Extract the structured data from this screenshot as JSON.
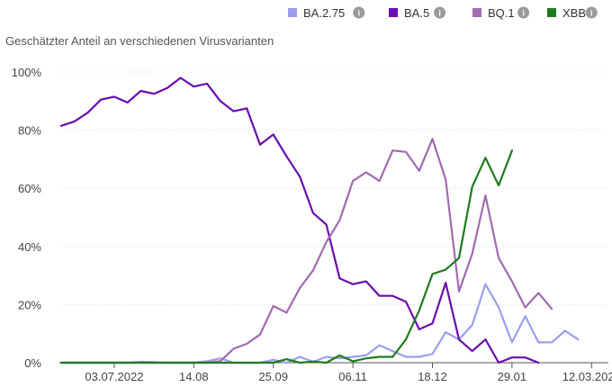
{
  "subtitle": "Geschätzter Anteil an verschiedenen Virusvarianten",
  "legend_info_glyph": "i",
  "chart_data": {
    "type": "line",
    "subtitle": "Geschätzter Anteil an verschiedenen Virusvarianten",
    "y_unit": "%",
    "ylim": [
      0,
      100
    ],
    "yticks": [
      "0%",
      "20%",
      "40%",
      "60%",
      "80%",
      "100%"
    ],
    "ytick_values": [
      0,
      20,
      40,
      60,
      80,
      100
    ],
    "x_tick_labels": [
      {
        "label": "03.07.2022",
        "index": 4
      },
      {
        "label": "14.08",
        "index": 10
      },
      {
        "label": "25.09",
        "index": 16
      },
      {
        "label": "06.11",
        "index": 22
      },
      {
        "label": "18.12",
        "index": 28
      },
      {
        "label": "29.01",
        "index": 34
      },
      {
        "label": "12.03.2023",
        "index": 40
      }
    ],
    "x_count": 42,
    "grid": true,
    "legend_position": "top-right",
    "series": [
      {
        "name": "BA.2.75",
        "color": "#9b9eec",
        "values": [
          0,
          0,
          0,
          0,
          0,
          0,
          0.3,
          0.2,
          0,
          0,
          0,
          0.5,
          1.5,
          0,
          0,
          0,
          1,
          0,
          2,
          0.3,
          2,
          1.5,
          2,
          2.5,
          6,
          4,
          2,
          2,
          3,
          10.5,
          8,
          13,
          27,
          19,
          7,
          16,
          7,
          7,
          11,
          8,
          null,
          null
        ]
      },
      {
        "name": "BA.5",
        "color": "#6a0dad",
        "values": [
          81.5,
          83,
          86,
          90.5,
          91.5,
          89.5,
          93.5,
          92.5,
          94.5,
          98,
          95,
          96,
          90,
          86.5,
          87.5,
          75,
          78.5,
          71,
          64,
          51.5,
          47.5,
          29,
          27,
          28,
          23,
          23,
          21,
          11.5,
          13.5,
          27.5,
          8,
          4,
          8,
          0,
          1.8,
          1.8,
          0,
          null,
          null,
          null,
          null,
          null
        ]
      },
      {
        "name": "BQ.1",
        "color": "#a06bb0",
        "values": [
          0,
          0,
          0,
          0,
          0,
          0,
          0,
          0,
          0,
          0,
          0,
          0,
          0.5,
          4.8,
          6.5,
          9.7,
          19.5,
          17.2,
          25.7,
          31.8,
          41.5,
          49,
          62.5,
          65.5,
          62.5,
          73,
          72.5,
          66,
          77,
          63,
          24.5,
          37.5,
          57.5,
          36,
          28,
          19,
          24,
          18.5,
          null,
          null,
          null,
          null
        ]
      },
      {
        "name": "XBB",
        "color": "#1e7b1e",
        "values": [
          0,
          0,
          0,
          0,
          0,
          0,
          0,
          0,
          0,
          0,
          0,
          0,
          0,
          0,
          0,
          0,
          0,
          1.2,
          0,
          0.4,
          0,
          2.5,
          0.5,
          1.5,
          2,
          2,
          8,
          18,
          30.5,
          32,
          36,
          60.5,
          70.5,
          61,
          73,
          null,
          null,
          null,
          null,
          null,
          null,
          null
        ]
      }
    ]
  }
}
